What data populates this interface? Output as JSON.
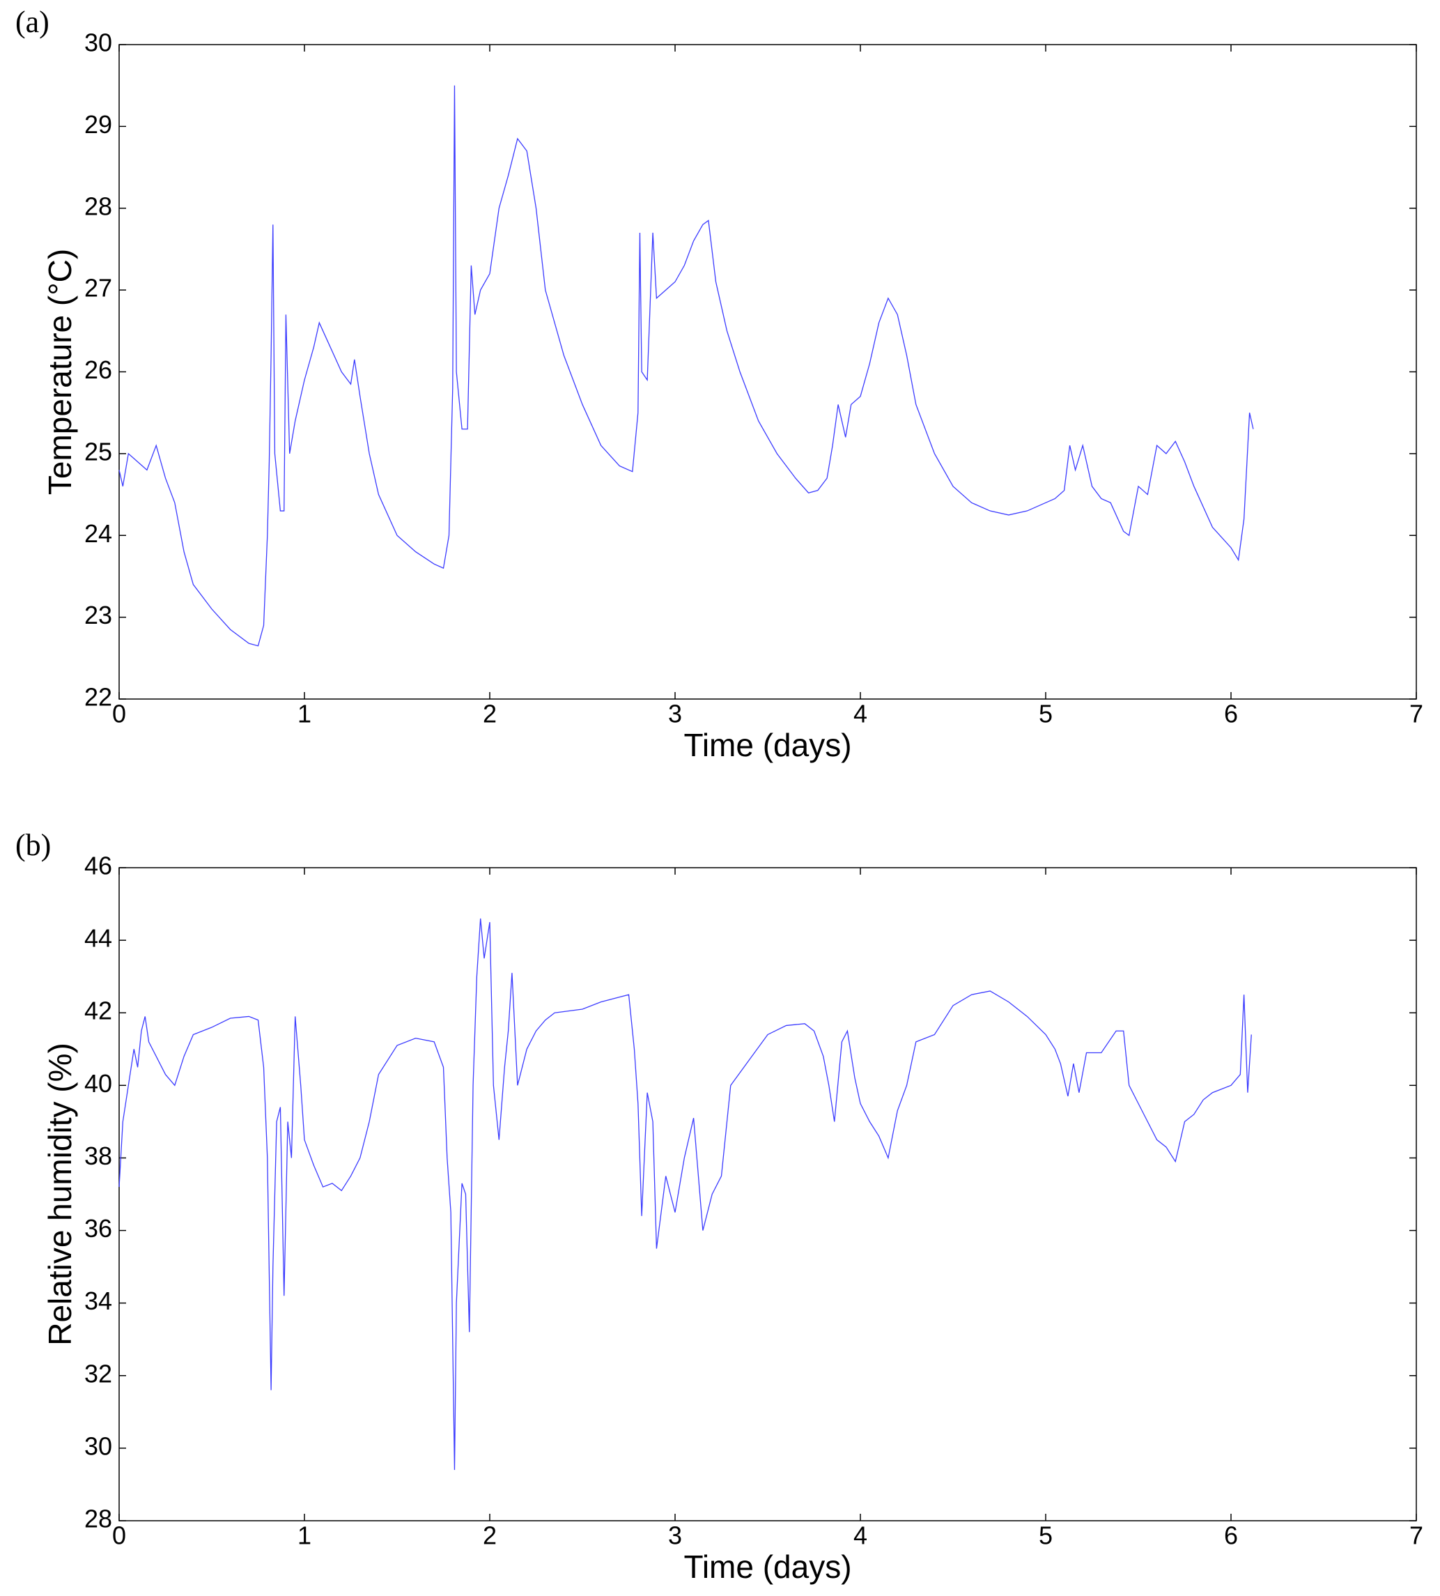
{
  "chart_data": [
    {
      "type": "line",
      "panel_label": "(a)",
      "xlabel": "Time (days)",
      "ylabel": "Temperature (°C)",
      "xlim": [
        0,
        7
      ],
      "xticks": [
        0,
        1,
        2,
        3,
        4,
        5,
        6,
        7
      ],
      "ylim": [
        22,
        30
      ],
      "yticks": [
        22,
        23,
        24,
        25,
        26,
        27,
        28,
        29,
        30
      ],
      "grid": false,
      "x": [
        0,
        0.02,
        0.05,
        0.1,
        0.15,
        0.2,
        0.25,
        0.3,
        0.35,
        0.4,
        0.5,
        0.6,
        0.7,
        0.75,
        0.78,
        0.8,
        0.81,
        0.82,
        0.83,
        0.84,
        0.87,
        0.89,
        0.9,
        0.92,
        0.95,
        1.0,
        1.05,
        1.08,
        1.12,
        1.2,
        1.25,
        1.27,
        1.3,
        1.35,
        1.4,
        1.5,
        1.6,
        1.7,
        1.75,
        1.78,
        1.8,
        1.81,
        1.82,
        1.85,
        1.88,
        1.9,
        1.92,
        1.95,
        2.0,
        2.05,
        2.1,
        2.15,
        2.2,
        2.25,
        2.3,
        2.4,
        2.5,
        2.6,
        2.7,
        2.77,
        2.8,
        2.81,
        2.82,
        2.85,
        2.88,
        2.9,
        2.95,
        3.0,
        3.05,
        3.1,
        3.15,
        3.18,
        3.22,
        3.28,
        3.35,
        3.45,
        3.55,
        3.65,
        3.72,
        3.77,
        3.82,
        3.85,
        3.88,
        3.92,
        3.95,
        4.0,
        4.05,
        4.1,
        4.15,
        4.2,
        4.25,
        4.3,
        4.4,
        4.5,
        4.6,
        4.7,
        4.8,
        4.9,
        5.0,
        5.05,
        5.1,
        5.13,
        5.16,
        5.2,
        5.25,
        5.3,
        5.35,
        5.42,
        5.45,
        5.5,
        5.55,
        5.6,
        5.65,
        5.7,
        5.75,
        5.8,
        5.9,
        6.0,
        6.04,
        6.07,
        6.1,
        6.12
      ],
      "series": [
        {
          "color": "#3b3bff",
          "values": [
            24.8,
            24.6,
            25.0,
            24.9,
            24.8,
            25.1,
            24.7,
            24.4,
            23.8,
            23.4,
            23.1,
            22.85,
            22.68,
            22.65,
            22.9,
            24.0,
            24.9,
            26.2,
            27.8,
            25.0,
            24.3,
            24.3,
            26.7,
            25.0,
            25.4,
            25.9,
            26.3,
            26.6,
            26.4,
            26.0,
            25.85,
            26.15,
            25.7,
            25.0,
            24.5,
            24.0,
            23.8,
            23.65,
            23.6,
            24.0,
            25.8,
            29.5,
            26.0,
            25.3,
            25.3,
            27.3,
            26.7,
            27.0,
            27.2,
            28.0,
            28.4,
            28.85,
            28.7,
            28.0,
            27.0,
            26.2,
            25.6,
            25.1,
            24.85,
            24.78,
            25.5,
            27.7,
            26.0,
            25.9,
            27.7,
            26.9,
            27.0,
            27.1,
            27.3,
            27.6,
            27.8,
            27.85,
            27.1,
            26.5,
            26.0,
            25.4,
            25.0,
            24.7,
            24.52,
            24.55,
            24.7,
            25.1,
            25.6,
            25.2,
            25.6,
            25.7,
            26.1,
            26.6,
            26.9,
            26.7,
            26.2,
            25.6,
            25.0,
            24.6,
            24.4,
            24.3,
            24.25,
            24.3,
            24.4,
            24.45,
            24.55,
            25.1,
            24.8,
            25.1,
            24.6,
            24.45,
            24.4,
            24.05,
            24.0,
            24.6,
            24.5,
            25.1,
            25.0,
            25.15,
            24.9,
            24.6,
            24.1,
            23.85,
            23.7,
            24.2,
            25.5,
            25.3
          ]
        }
      ]
    },
    {
      "type": "line",
      "panel_label": "(b)",
      "xlabel": "Time (days)",
      "ylabel": "Relative humidity (%)",
      "xlim": [
        0,
        7
      ],
      "xticks": [
        0,
        1,
        2,
        3,
        4,
        5,
        6,
        7
      ],
      "ylim": [
        28,
        46
      ],
      "yticks": [
        28,
        30,
        32,
        34,
        36,
        38,
        40,
        42,
        44,
        46
      ],
      "grid": false,
      "x": [
        0,
        0.02,
        0.05,
        0.08,
        0.1,
        0.12,
        0.14,
        0.16,
        0.2,
        0.25,
        0.3,
        0.35,
        0.4,
        0.5,
        0.6,
        0.7,
        0.75,
        0.78,
        0.8,
        0.82,
        0.83,
        0.85,
        0.87,
        0.89,
        0.91,
        0.93,
        0.95,
        0.98,
        1.0,
        1.05,
        1.1,
        1.15,
        1.2,
        1.25,
        1.3,
        1.35,
        1.4,
        1.5,
        1.6,
        1.7,
        1.75,
        1.77,
        1.79,
        1.81,
        1.82,
        1.85,
        1.87,
        1.89,
        1.91,
        1.93,
        1.95,
        1.97,
        2.0,
        2.02,
        2.05,
        2.08,
        2.1,
        2.12,
        2.15,
        2.2,
        2.25,
        2.3,
        2.35,
        2.5,
        2.6,
        2.75,
        2.78,
        2.8,
        2.82,
        2.85,
        2.88,
        2.9,
        2.95,
        3.0,
        3.05,
        3.1,
        3.15,
        3.2,
        3.25,
        3.3,
        3.4,
        3.5,
        3.6,
        3.7,
        3.75,
        3.8,
        3.83,
        3.86,
        3.9,
        3.93,
        3.97,
        4.0,
        4.05,
        4.1,
        4.15,
        4.2,
        4.25,
        4.3,
        4.4,
        4.5,
        4.6,
        4.7,
        4.8,
        4.9,
        5.0,
        5.05,
        5.08,
        5.12,
        5.15,
        5.18,
        5.22,
        5.3,
        5.38,
        5.42,
        5.45,
        5.5,
        5.55,
        5.6,
        5.65,
        5.7,
        5.75,
        5.8,
        5.85,
        5.9,
        6.0,
        6.05,
        6.07,
        6.09,
        6.11
      ],
      "series": [
        {
          "color": "#3b3bff",
          "values": [
            37.2,
            39.0,
            40.0,
            41.0,
            40.5,
            41.5,
            41.9,
            41.2,
            40.8,
            40.3,
            40.0,
            40.8,
            41.4,
            41.6,
            41.85,
            41.9,
            41.8,
            40.5,
            38.0,
            31.6,
            35.0,
            39.0,
            39.4,
            34.2,
            39.0,
            38.0,
            41.9,
            40.0,
            38.5,
            37.8,
            37.2,
            37.3,
            37.1,
            37.5,
            38.0,
            39.0,
            40.3,
            41.1,
            41.3,
            41.2,
            40.5,
            38.0,
            36.5,
            29.4,
            34.0,
            37.3,
            37.0,
            33.2,
            40.0,
            43.0,
            44.6,
            43.5,
            44.5,
            40.0,
            38.5,
            40.5,
            41.5,
            43.1,
            40.0,
            41.0,
            41.5,
            41.8,
            42.0,
            42.1,
            42.3,
            42.5,
            41.0,
            39.5,
            36.4,
            39.8,
            39.0,
            35.5,
            37.5,
            36.5,
            38.0,
            39.1,
            36.0,
            37.0,
            37.5,
            40.0,
            40.7,
            41.4,
            41.65,
            41.7,
            41.5,
            40.8,
            40.0,
            39.0,
            41.2,
            41.5,
            40.2,
            39.5,
            39.0,
            38.6,
            38.0,
            39.3,
            40.0,
            41.2,
            41.4,
            42.2,
            42.5,
            42.6,
            42.3,
            41.9,
            41.4,
            41.0,
            40.6,
            39.7,
            40.6,
            39.8,
            40.9,
            40.9,
            41.5,
            41.5,
            40.0,
            39.5,
            39.0,
            38.5,
            38.3,
            37.9,
            39.0,
            39.2,
            39.6,
            39.8,
            40.0,
            40.3,
            42.5,
            39.8,
            41.4
          ]
        }
      ]
    }
  ]
}
